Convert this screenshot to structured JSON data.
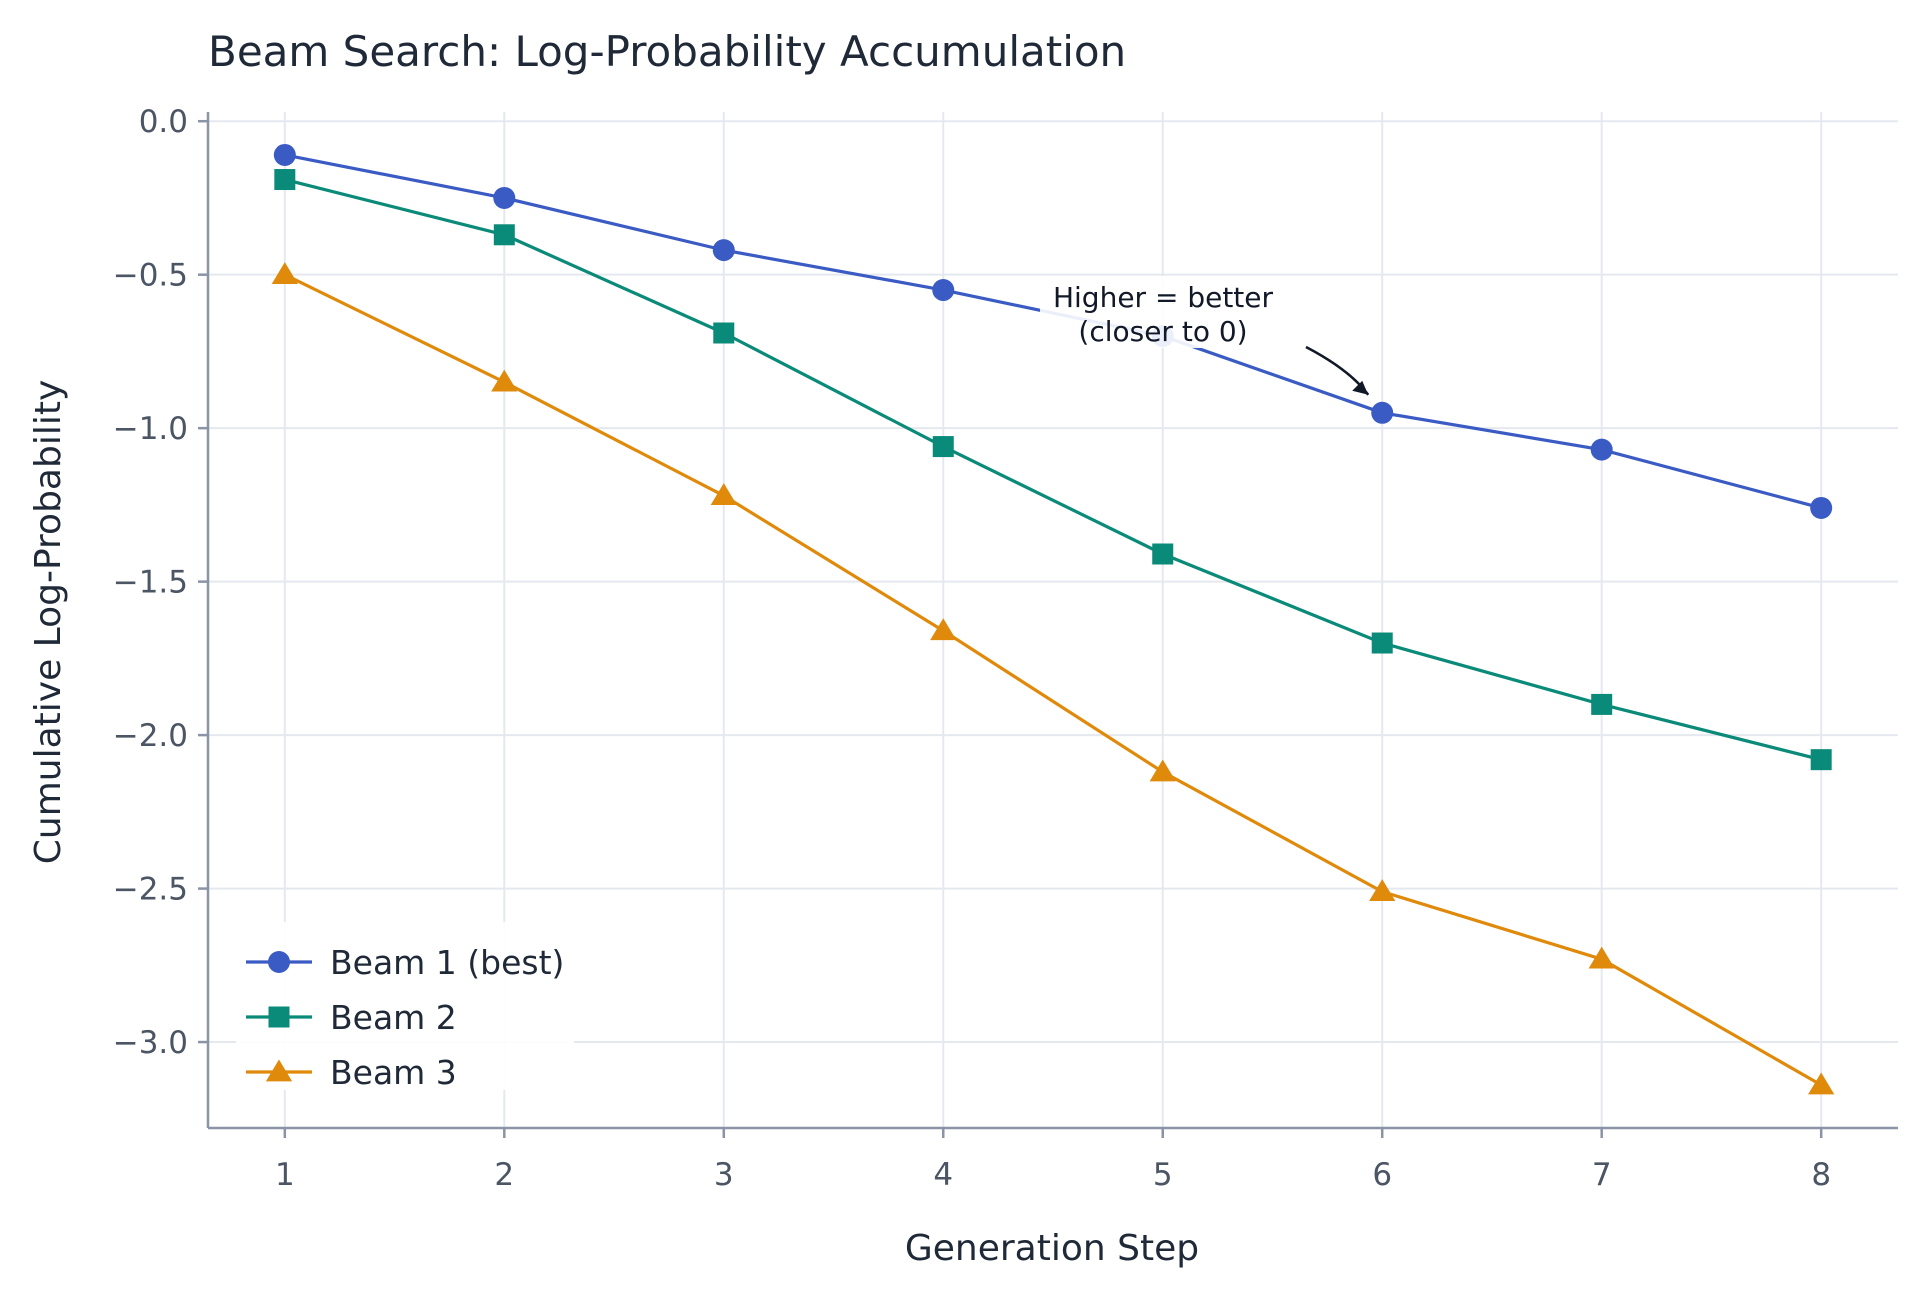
{
  "chart_data": {
    "type": "line",
    "title": "Beam Search: Log-Probability Accumulation",
    "xlabel": "Generation Step",
    "ylabel": "Cumulative Log-Probability",
    "x": [
      1,
      2,
      3,
      4,
      5,
      6,
      7,
      8
    ],
    "x_ticks": [
      "1",
      "2",
      "3",
      "4",
      "5",
      "6",
      "7",
      "8"
    ],
    "y_ticks": [
      "0.0",
      "−0.5",
      "−1.0",
      "−1.5",
      "−2.0",
      "−2.5",
      "−3.0"
    ],
    "y_tick_values": [
      0.0,
      -0.5,
      -1.0,
      -1.5,
      -2.0,
      -2.5,
      -3.0
    ],
    "xlim": [
      0.65,
      8.35
    ],
    "ylim": [
      -3.28,
      0.03
    ],
    "grid": true,
    "legend_position": "lower-left",
    "series": [
      {
        "name": "Beam 1 (best)",
        "marker": "circle",
        "color": "#3b5bc4",
        "values": [
          -0.11,
          -0.25,
          -0.42,
          -0.55,
          -0.7,
          -0.95,
          -1.07,
          -1.26
        ]
      },
      {
        "name": "Beam 2",
        "marker": "square",
        "color": "#0a8a78",
        "values": [
          -0.19,
          -0.37,
          -0.69,
          -1.06,
          -1.41,
          -1.7,
          -1.9,
          -2.08
        ]
      },
      {
        "name": "Beam 3",
        "marker": "triangle",
        "color": "#e08a0b",
        "values": [
          -0.5,
          -0.85,
          -1.22,
          -1.66,
          -2.12,
          -2.51,
          -2.73,
          -3.14
        ]
      }
    ],
    "annotation": {
      "lines": [
        "Higher = better",
        "(closer to 0)"
      ],
      "x": 6,
      "y": -0.95
    }
  }
}
